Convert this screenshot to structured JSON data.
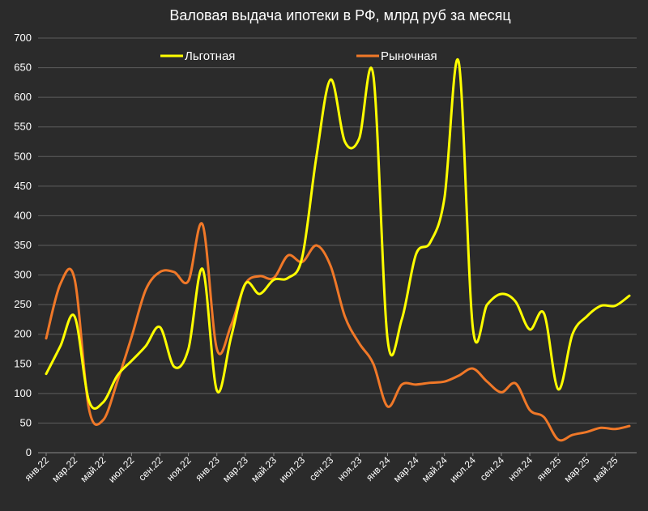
{
  "chart_data": {
    "type": "line",
    "title": "Валовая выдача ипотеки в РФ, млрд руб за месяц",
    "xlabel": "",
    "ylabel": "",
    "ylim": [
      0,
      700
    ],
    "y_ticks": [
      0,
      50,
      100,
      150,
      200,
      250,
      300,
      350,
      400,
      450,
      500,
      550,
      600,
      650,
      700
    ],
    "grid": true,
    "legend_position": "top",
    "x": [
      "янв.22",
      "фев.22",
      "мар.22",
      "апр.22",
      "май.22",
      "июн.22",
      "июл.22",
      "авг.22",
      "сен.22",
      "окт.22",
      "ноя.22",
      "дек.22",
      "янв.23",
      "фев.23",
      "мар.23",
      "апр.23",
      "май.23",
      "июн.23",
      "июл.23",
      "авг.23",
      "сен.23",
      "окт.23",
      "ноя.23",
      "дек.23",
      "янв.24",
      "фев.24",
      "мар.24",
      "апр.24",
      "май.24",
      "июн.24",
      "июл.24",
      "авг.24",
      "сен.24",
      "окт.24",
      "ноя.24",
      "дек.24",
      "янв.25",
      "фев.25",
      "мар.25",
      "апр.25",
      "май.25",
      "июн.25"
    ],
    "x_tick_labels": [
      "янв.22",
      "мар.22",
      "май.22",
      "июл.22",
      "сен.22",
      "ноя.22",
      "янв.23",
      "мар.23",
      "май.23",
      "июл.23",
      "сен.23",
      "ноя.23",
      "янв.24",
      "мар.24",
      "май.24",
      "июл.24",
      "сен.24",
      "ноя.24",
      "янв.25",
      "мар.25",
      "май.25"
    ],
    "series": [
      {
        "name": "Льготная",
        "color": "#ffff00",
        "values": [
          133,
          180,
          230,
          88,
          85,
          130,
          155,
          180,
          212,
          145,
          175,
          310,
          105,
          195,
          285,
          268,
          292,
          295,
          330,
          500,
          630,
          525,
          530,
          637,
          192,
          225,
          335,
          355,
          430,
          660,
          210,
          250,
          268,
          255,
          208,
          235,
          107,
          200,
          230,
          248,
          248,
          265
        ]
      },
      {
        "name": "Рыночная",
        "color": "#f07828",
        "values": [
          193,
          285,
          293,
          75,
          55,
          120,
          195,
          275,
          305,
          305,
          290,
          385,
          175,
          215,
          285,
          298,
          295,
          333,
          322,
          350,
          315,
          230,
          185,
          150,
          78,
          115,
          115,
          118,
          120,
          130,
          142,
          120,
          102,
          117,
          72,
          60,
          22,
          30,
          35,
          42,
          40,
          45
        ]
      }
    ]
  }
}
